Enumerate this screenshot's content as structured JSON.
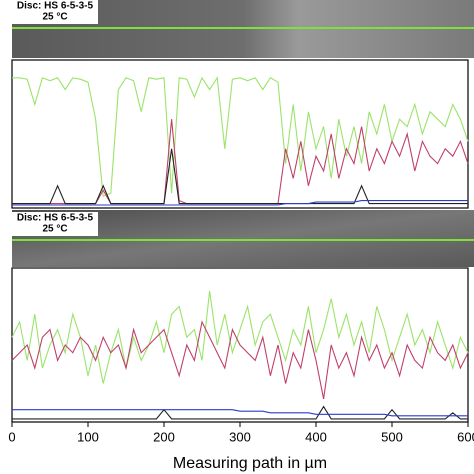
{
  "micrographs": [
    {
      "caption": [
        "Disc: HS 6-5-3-5",
        "25 °C"
      ]
    },
    {
      "caption": [
        "Disc: HS 6-5-3-5",
        "25 °C"
      ]
    }
  ],
  "chart_data": [
    {
      "type": "line",
      "xlim": [
        0,
        600
      ],
      "ylim": [
        0,
        100
      ],
      "x": [
        0,
        10,
        20,
        30,
        40,
        50,
        60,
        70,
        80,
        90,
        100,
        110,
        120,
        130,
        140,
        150,
        160,
        170,
        180,
        190,
        200,
        210,
        220,
        230,
        240,
        250,
        260,
        270,
        280,
        290,
        300,
        310,
        320,
        330,
        340,
        350,
        360,
        370,
        380,
        390,
        400,
        410,
        420,
        430,
        440,
        450,
        460,
        470,
        480,
        490,
        500,
        510,
        520,
        530,
        540,
        550,
        560,
        570,
        580,
        590,
        600
      ],
      "series": [
        {
          "color": "#9be36a",
          "values": [
            88,
            88,
            87,
            70,
            88,
            86,
            88,
            80,
            88,
            87,
            85,
            60,
            8,
            10,
            80,
            88,
            86,
            65,
            88,
            87,
            88,
            10,
            88,
            87,
            75,
            88,
            80,
            88,
            40,
            87,
            88,
            86,
            88,
            80,
            88,
            85,
            30,
            70,
            25,
            65,
            40,
            55,
            20,
            60,
            35,
            55,
            30,
            65,
            50,
            70,
            45,
            60,
            55,
            70,
            50,
            65,
            60,
            55,
            70,
            60,
            45
          ]
        },
        {
          "color": "#c0406a",
          "values": [
            3,
            3,
            3,
            3,
            3,
            3,
            3,
            3,
            3,
            3,
            3,
            3,
            12,
            3,
            3,
            3,
            3,
            3,
            3,
            3,
            3,
            60,
            5,
            3,
            3,
            3,
            3,
            3,
            3,
            3,
            3,
            3,
            3,
            3,
            3,
            3,
            40,
            20,
            45,
            15,
            35,
            25,
            50,
            20,
            40,
            30,
            55,
            25,
            40,
            30,
            45,
            35,
            50,
            25,
            45,
            35,
            30,
            40,
            35,
            45,
            30
          ]
        },
        {
          "color": "#222222",
          "values": [
            3,
            3,
            3,
            3,
            3,
            3,
            15,
            3,
            3,
            3,
            3,
            3,
            15,
            3,
            3,
            3,
            3,
            3,
            3,
            3,
            3,
            40,
            3,
            3,
            3,
            3,
            3,
            3,
            3,
            3,
            3,
            3,
            3,
            3,
            3,
            3,
            3,
            3,
            3,
            3,
            3,
            3,
            3,
            3,
            3,
            3,
            15,
            3,
            3,
            3,
            3,
            3,
            3,
            3,
            3,
            3,
            3,
            3,
            3,
            3,
            3
          ]
        },
        {
          "color": "#2a3ccc",
          "values": [
            2,
            2,
            2,
            2,
            2,
            2,
            2,
            2,
            2,
            2,
            2,
            2,
            2,
            2,
            2,
            2,
            2,
            2,
            2,
            2,
            2,
            2,
            2,
            2,
            2,
            2,
            2,
            2,
            2,
            2,
            2,
            2,
            2,
            2,
            2,
            2,
            3,
            3,
            3,
            3,
            4,
            4,
            4,
            4,
            4,
            4,
            5,
            5,
            5,
            5,
            5,
            5,
            5,
            5,
            5,
            5,
            5,
            5,
            5,
            5,
            5
          ]
        }
      ]
    },
    {
      "type": "line",
      "xlim": [
        0,
        600
      ],
      "ylim": [
        0,
        100
      ],
      "xticks": [
        0,
        100,
        200,
        300,
        400,
        500,
        600
      ],
      "xlabel": "Measuring path in µm",
      "x": [
        0,
        10,
        20,
        30,
        40,
        50,
        60,
        70,
        80,
        90,
        100,
        110,
        120,
        130,
        140,
        150,
        160,
        170,
        180,
        190,
        200,
        210,
        220,
        230,
        240,
        250,
        260,
        270,
        280,
        290,
        300,
        310,
        320,
        330,
        340,
        350,
        360,
        370,
        380,
        390,
        400,
        410,
        420,
        430,
        440,
        450,
        460,
        470,
        480,
        490,
        500,
        510,
        520,
        530,
        540,
        550,
        560,
        570,
        580,
        590,
        600
      ],
      "series": [
        {
          "color": "#9be36a",
          "values": [
            55,
            65,
            40,
            70,
            35,
            50,
            60,
            45,
            70,
            55,
            30,
            50,
            25,
            45,
            60,
            35,
            55,
            40,
            50,
            65,
            45,
            70,
            75,
            55,
            60,
            40,
            85,
            50,
            70,
            45,
            60,
            75,
            50,
            65,
            70,
            55,
            40,
            60,
            50,
            75,
            45,
            60,
            80,
            55,
            70,
            50,
            65,
            45,
            75,
            60,
            40,
            55,
            70,
            50,
            60,
            45,
            65,
            50,
            35,
            55,
            45
          ]
        },
        {
          "color": "#c0406a",
          "values": [
            40,
            45,
            50,
            35,
            55,
            60,
            40,
            50,
            45,
            55,
            50,
            40,
            55,
            45,
            50,
            35,
            60,
            45,
            50,
            55,
            60,
            45,
            30,
            50,
            40,
            65,
            55,
            45,
            35,
            60,
            50,
            45,
            40,
            55,
            30,
            50,
            25,
            45,
            35,
            60,
            40,
            15,
            50,
            35,
            45,
            30,
            55,
            40,
            50,
            35,
            45,
            30,
            50,
            40,
            35,
            55,
            45,
            40,
            50,
            35,
            45
          ]
        },
        {
          "color": "#222222",
          "values": [
            2,
            2,
            2,
            2,
            2,
            2,
            2,
            2,
            2,
            2,
            2,
            2,
            2,
            2,
            2,
            2,
            2,
            2,
            2,
            2,
            8,
            2,
            2,
            2,
            2,
            2,
            2,
            2,
            2,
            2,
            2,
            2,
            2,
            2,
            2,
            2,
            2,
            2,
            2,
            2,
            2,
            10,
            2,
            2,
            2,
            2,
            2,
            2,
            2,
            2,
            8,
            2,
            2,
            2,
            2,
            2,
            2,
            2,
            6,
            2,
            2
          ]
        },
        {
          "color": "#2a3ccc",
          "values": [
            8,
            8,
            8,
            8,
            8,
            8,
            8,
            8,
            8,
            8,
            8,
            8,
            8,
            8,
            8,
            8,
            8,
            8,
            8,
            8,
            8,
            8,
            8,
            8,
            8,
            8,
            8,
            8,
            8,
            8,
            7,
            7,
            7,
            7,
            6,
            6,
            6,
            6,
            6,
            6,
            5,
            5,
            5,
            5,
            5,
            5,
            5,
            5,
            5,
            5,
            4,
            4,
            4,
            4,
            4,
            4,
            4,
            4,
            4,
            4,
            4
          ]
        }
      ]
    }
  ]
}
